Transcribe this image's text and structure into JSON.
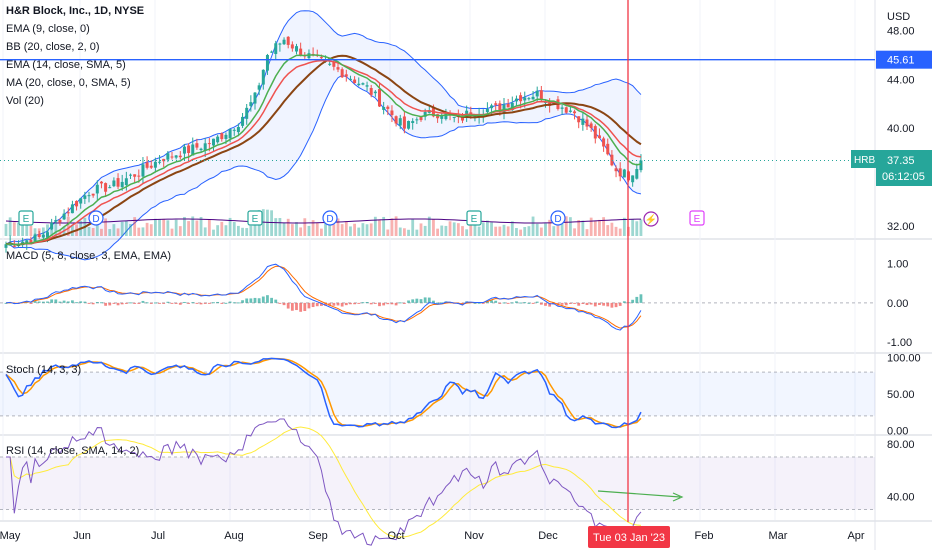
{
  "chart_data": {
    "type": "candlestick",
    "title": "H&R Block, Inc., 1D, NYSE",
    "currency": "USD",
    "overlays": [
      "EMA (9, close, 0)",
      "BB (20, close, 2, 0)",
      "EMA (14, close, SMA, 5)",
      "MA (20, close, 0, SMA, 5)",
      "Vol (20)"
    ],
    "last_price": "37.35",
    "countdown": "06:12:05",
    "ticker": "HRB",
    "hline_price": "45.61",
    "crosshair_date": "Tue 03 Jan '23",
    "price_axis": {
      "ticks": [
        "48.00",
        "44.00",
        "40.00",
        "32.00"
      ],
      "ylim": [
        31,
        50.5
      ]
    },
    "macd_axis": {
      "ticks": [
        "1.00",
        "0.00",
        "-1.00"
      ],
      "ylim": [
        -1.25,
        1.6
      ]
    },
    "stoch_axis": {
      "ticks": [
        "100.00",
        "50.00",
        "0.00"
      ],
      "ylim": [
        -5,
        105
      ]
    },
    "rsi_axis": {
      "ticks": [
        "80.00",
        "40.00"
      ],
      "ylim": [
        22,
        86
      ]
    },
    "x_labels": [
      "May",
      "Jun",
      "Jul",
      "Aug",
      "Sep",
      "Oct",
      "Nov",
      "Dec",
      "Feb",
      "Mar",
      "Apr"
    ],
    "panes": {
      "macd": "MACD (5, 8, close, 3, EMA, EMA)",
      "stoch": "Stoch (14, 3, 3)",
      "rsi": "RSI (14, close, SMA, 14, 2)"
    },
    "events": [
      "E",
      "D",
      "E",
      "D",
      "E",
      "D",
      "E"
    ],
    "price_keys": [
      [
        0,
        30.5
      ],
      [
        8,
        31.0
      ],
      [
        14,
        33.0
      ],
      [
        20,
        34.8
      ],
      [
        26,
        35.3
      ],
      [
        32,
        36.4
      ],
      [
        38,
        37.6
      ],
      [
        44,
        38.2
      ],
      [
        50,
        38.9
      ],
      [
        56,
        40.5
      ],
      [
        60,
        42.5
      ],
      [
        63,
        46.0
      ],
      [
        67,
        47.3
      ],
      [
        70,
        46.5
      ],
      [
        75,
        45.5
      ],
      [
        81,
        44.6
      ],
      [
        87,
        43.3
      ],
      [
        92,
        41.5
      ],
      [
        96,
        40.0
      ],
      [
        100,
        41.0
      ],
      [
        105,
        41.3
      ],
      [
        109,
        40.6
      ],
      [
        112,
        41.4
      ],
      [
        118,
        41.6
      ],
      [
        124,
        42.6
      ],
      [
        128,
        42.8
      ],
      [
        132,
        42.1
      ],
      [
        137,
        41.3
      ],
      [
        141,
        39.8
      ],
      [
        144,
        38.3
      ],
      [
        147,
        36.6
      ],
      [
        150,
        36.1
      ],
      [
        153,
        37.35
      ]
    ]
  },
  "colors": {
    "up": "#26a69a",
    "down": "#ef5350",
    "ema9": "#4caf50",
    "ema14": "#ef5350",
    "ma20": "#8b4513",
    "bb": "#2962ff",
    "hline": "#2962ff",
    "crosshair": "#f23645",
    "macd": "#2962ff",
    "signal": "#ff6d00",
    "stoch_k": "#2962ff",
    "stoch_d": "#ff9800",
    "rsi": "#7e57c2",
    "rsi_ma": "#ffeb3b",
    "vol": "#2962ff"
  }
}
